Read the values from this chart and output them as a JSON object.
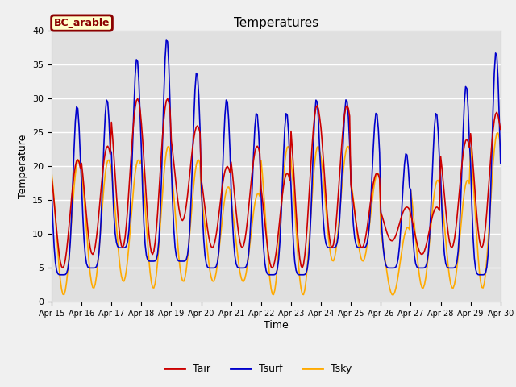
{
  "title": "Temperatures",
  "xlabel": "Time",
  "ylabel": "Temperature",
  "site_label": "BC_arable",
  "ylim": [
    0,
    40
  ],
  "xlim": [
    0,
    360
  ],
  "xtick_positions": [
    0,
    24,
    48,
    72,
    96,
    120,
    144,
    168,
    192,
    216,
    240,
    264,
    288,
    312,
    336,
    360
  ],
  "xtick_labels": [
    "Apr 15",
    "Apr 16",
    "Apr 17",
    "Apr 18",
    "Apr 19",
    "Apr 20",
    "Apr 21",
    "Apr 22",
    "Apr 23",
    "Apr 24",
    "Apr 25",
    "Apr 26",
    "Apr 27",
    "Apr 28",
    "Apr 29",
    "Apr 30"
  ],
  "tair_color": "#cc0000",
  "tsurf_color": "#0000cc",
  "tsky_color": "#ffaa00",
  "bg_color": "#e0e0e0",
  "grid_color": "#ffffff",
  "legend_labels": [
    "Tair",
    "Tsurf",
    "Tsky"
  ],
  "fig_bg": "#f0f0f0",
  "day_peaks_tair": [
    21,
    23,
    30,
    30,
    26,
    20,
    23,
    19,
    29,
    29,
    19,
    14,
    14,
    24,
    28,
    28
  ],
  "day_troughs_tair": [
    5,
    7,
    8,
    7,
    12,
    8,
    8,
    5,
    5,
    8,
    8,
    9,
    7,
    8,
    8,
    12
  ],
  "day_peaks_tsurf": [
    29,
    30,
    36,
    39,
    34,
    30,
    28,
    28,
    30,
    30,
    28,
    22,
    28,
    32,
    37,
    36
  ],
  "day_troughs_tsurf": [
    4,
    5,
    8,
    6,
    6,
    5,
    5,
    4,
    4,
    8,
    8,
    5,
    5,
    5,
    4,
    5
  ],
  "day_peaks_tsky": [
    21,
    21,
    21,
    23,
    21,
    17,
    16,
    23,
    23,
    23,
    19,
    11,
    18,
    18,
    25,
    25
  ],
  "day_troughs_tsky": [
    1,
    2,
    3,
    2,
    3,
    3,
    3,
    1,
    1,
    6,
    6,
    1,
    2,
    2,
    2,
    3
  ],
  "tsurf_sharp_factor": 3.0,
  "tair_phase": 0.37,
  "tsurf_phase": 0.35,
  "tsky_phase": 0.4
}
